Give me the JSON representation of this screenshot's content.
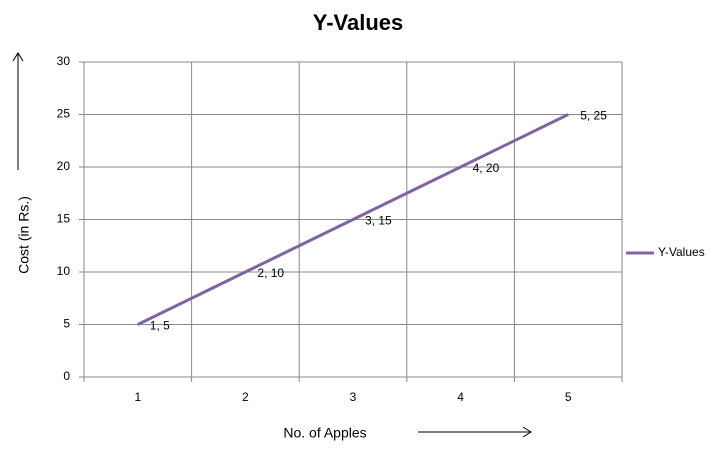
{
  "chart_data": {
    "type": "line",
    "title": "Y-Values",
    "x_label": "No. of Apples",
    "y_label": "Cost (in Rs.)",
    "categories": [
      1,
      2,
      3,
      4,
      5
    ],
    "series": [
      {
        "name": "Y-Values",
        "color": "#8064a2",
        "values": [
          5,
          10,
          15,
          20,
          25
        ],
        "value_labels": [
          "1, 5",
          "2, 10",
          "3, 15",
          "4, 20",
          "5, 25"
        ]
      }
    ],
    "ylim": [
      0,
      30
    ],
    "yticks": [
      0,
      5,
      10,
      15,
      20,
      25,
      30
    ],
    "grid": true,
    "legend": "right"
  }
}
